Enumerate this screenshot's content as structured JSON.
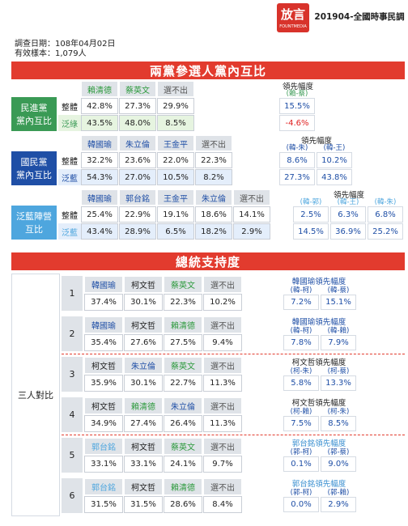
{
  "header": {
    "logo": "放言",
    "logo_sub": "FOUNTMEDIA",
    "title": "201904-全國時事民調"
  },
  "meta": [
    "調查日期：108年04月02日",
    "有效樣本：1,079人"
  ],
  "section1": {
    "title": "兩黨參選人黨內互比",
    "blocks": [
      {
        "label": [
          "民進黨",
          "黨內互比"
        ],
        "color": "#3a9a55",
        "columns": [
          {
            "name": "賴清德",
            "color": "#2e9a3e"
          },
          {
            "name": "蔡英文",
            "color": "#2e9a3e"
          },
          {
            "name": "選不出",
            "color": "#555"
          }
        ],
        "rows": [
          {
            "label": "整體",
            "values": [
              "42.8%",
              "27.3%",
              "29.9%"
            ]
          },
          {
            "label": "泛綠",
            "values": [
              "43.5%",
              "48.0%",
              "8.5%"
            ]
          }
        ],
        "lead": {
          "title": "領先幅度",
          "pairs": [
            "(賴-蔡)"
          ],
          "rows": [
            [
              "15.5%"
            ],
            [
              "-4.6%"
            ]
          ]
        }
      },
      {
        "label": [
          "國民黨",
          "黨內互比"
        ],
        "color": "#1f4fa6",
        "columns": [
          {
            "name": "韓國瑜",
            "color": "#1f4fa6"
          },
          {
            "name": "朱立倫",
            "color": "#1f4fa6"
          },
          {
            "name": "王金平",
            "color": "#1f4fa6"
          },
          {
            "name": "選不出",
            "color": "#555"
          }
        ],
        "rows": [
          {
            "label": "整體",
            "values": [
              "32.2%",
              "23.6%",
              "22.0%",
              "22.3%"
            ]
          },
          {
            "label": "泛藍",
            "values": [
              "54.3%",
              "27.0%",
              "10.5%",
              "8.2%"
            ]
          }
        ],
        "lead": {
          "title": "領先幅度",
          "pairs": [
            "(韓-朱)",
            "(韓-王)"
          ],
          "rows": [
            [
              "8.6%",
              "10.2%"
            ],
            [
              "27.3%",
              "43.8%"
            ]
          ]
        }
      },
      {
        "label": [
          "泛藍陣營",
          "互比"
        ],
        "color": "#4ea6de",
        "columns": [
          {
            "name": "韓國瑜",
            "color": "#1f4fa6"
          },
          {
            "name": "郭台銘",
            "color": "#1f4fa6"
          },
          {
            "name": "王金平",
            "color": "#1f4fa6"
          },
          {
            "name": "朱立倫",
            "color": "#1f4fa6"
          },
          {
            "name": "選不出",
            "color": "#555"
          }
        ],
        "rows": [
          {
            "label": "整體",
            "values": [
              "25.4%",
              "22.9%",
              "19.1%",
              "18.6%",
              "14.1%"
            ]
          },
          {
            "label": "泛藍",
            "values": [
              "43.4%",
              "28.9%",
              "6.5%",
              "18.2%",
              "2.9%"
            ]
          }
        ],
        "lead": {
          "title": "領先幅度",
          "pairs": [
            "(韓-郭)",
            "(韓-王)",
            "(韓-朱)"
          ],
          "rows": [
            [
              "2.5%",
              "6.3%",
              "6.8%"
            ],
            [
              "14.5%",
              "36.9%",
              "25.2%"
            ]
          ]
        }
      }
    ]
  },
  "section2": {
    "title": "總統支持度",
    "group_label": "三人對比",
    "scenarios": [
      {
        "number": "1",
        "columns": [
          {
            "name": "韓國瑜",
            "color": "#1f4fa6"
          },
          {
            "name": "柯文哲",
            "color": "#222"
          },
          {
            "name": "蔡英文",
            "color": "#2e9a3e"
          },
          {
            "name": "選不出",
            "color": "#555"
          }
        ],
        "values": [
          "37.4%",
          "30.1%",
          "22.3%",
          "10.2%"
        ],
        "lead": {
          "title": "韓國瑜領先幅度",
          "color": "#1f4fa6",
          "pairs": [
            "(韓-柯)",
            "(韓-蔡)"
          ],
          "values": [
            "7.2%",
            "15.1%"
          ]
        }
      },
      {
        "number": "2",
        "columns": [
          {
            "name": "韓國瑜",
            "color": "#1f4fa6"
          },
          {
            "name": "柯文哲",
            "color": "#222"
          },
          {
            "name": "賴清德",
            "color": "#2e9a3e"
          },
          {
            "name": "選不出",
            "color": "#555"
          }
        ],
        "values": [
          "35.4%",
          "27.6%",
          "27.5%",
          "9.4%"
        ],
        "lead": {
          "title": "韓國瑜領先幅度",
          "color": "#1f4fa6",
          "pairs": [
            "(韓-柯)",
            "(韓-賴)"
          ],
          "values": [
            "7.8%",
            "7.9%"
          ]
        }
      },
      {
        "number": "3",
        "columns": [
          {
            "name": "柯文哲",
            "color": "#222"
          },
          {
            "name": "朱立倫",
            "color": "#1f4fa6"
          },
          {
            "name": "蔡英文",
            "color": "#2e9a3e"
          },
          {
            "name": "選不出",
            "color": "#555"
          }
        ],
        "values": [
          "35.9%",
          "30.1%",
          "22.7%",
          "11.3%"
        ],
        "lead": {
          "title": "柯文哲領先幅度",
          "color": "#222",
          "pairs": [
            "(柯-朱)",
            "(柯-蔡)"
          ],
          "values": [
            "5.8%",
            "13.3%"
          ]
        }
      },
      {
        "number": "4",
        "columns": [
          {
            "name": "柯文哲",
            "color": "#222"
          },
          {
            "name": "賴清德",
            "color": "#2e9a3e"
          },
          {
            "name": "朱立倫",
            "color": "#1f4fa6"
          },
          {
            "name": "選不出",
            "color": "#555"
          }
        ],
        "values": [
          "34.9%",
          "27.4%",
          "26.4%",
          "11.3%"
        ],
        "lead": {
          "title": "柯文哲領先幅度",
          "color": "#222",
          "pairs": [
            "(柯-賴)",
            "(柯-朱)"
          ],
          "values": [
            "7.5%",
            "8.5%"
          ]
        }
      },
      {
        "number": "5",
        "columns": [
          {
            "name": "郭台銘",
            "color": "#4ea6de"
          },
          {
            "name": "柯文哲",
            "color": "#222"
          },
          {
            "name": "蔡英文",
            "color": "#2e9a3e"
          },
          {
            "name": "選不出",
            "color": "#555"
          }
        ],
        "values": [
          "33.1%",
          "33.1%",
          "24.1%",
          "9.7%"
        ],
        "lead": {
          "title": "郭台銘領先幅度",
          "color": "#3a8fd0",
          "pairs": [
            "(郭-柯)",
            "(郭-蔡)"
          ],
          "values": [
            "0.1%",
            "9.0%"
          ]
        }
      },
      {
        "number": "6",
        "columns": [
          {
            "name": "郭台銘",
            "color": "#4ea6de"
          },
          {
            "name": "柯文哲",
            "color": "#222"
          },
          {
            "name": "賴清德",
            "color": "#2e9a3e"
          },
          {
            "name": "選不出",
            "color": "#555"
          }
        ],
        "values": [
          "31.5%",
          "31.5%",
          "28.6%",
          "8.4%"
        ],
        "lead": {
          "title": "郭台銘領先幅度",
          "color": "#3a8fd0",
          "pairs": [
            "(郭-柯)",
            "(郭-賴)"
          ],
          "values": [
            "0.0%",
            "2.9%"
          ]
        }
      }
    ]
  }
}
